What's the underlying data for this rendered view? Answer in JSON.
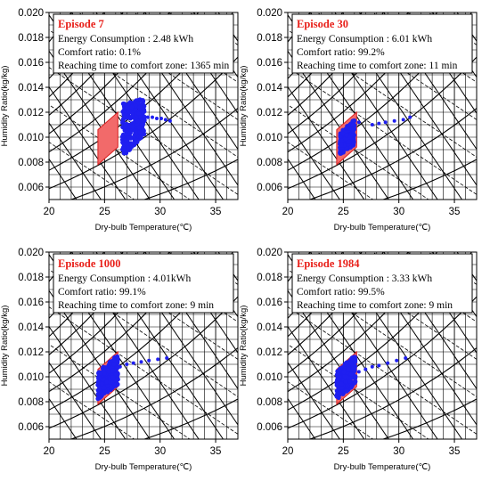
{
  "chart_data": [
    {
      "type": "scatter",
      "title": "Episode 7",
      "info": [
        "Energy Consumption : 2.48 kWh",
        "Comfort ratio: 0.1%",
        "Reaching time to comfort zone: 1365 min"
      ],
      "xlabel": "Dry-bulb Temperature(℃)",
      "ylabel": "Humidity Ratio(kg/kg)",
      "xlim": [
        20,
        37
      ],
      "ylim": [
        0.005,
        0.02
      ],
      "xticks": [
        "20",
        "25",
        "30",
        "35"
      ],
      "yticks": [
        "0.006",
        "0.008",
        "0.010",
        "0.012",
        "0.014",
        "0.016",
        "0.018",
        "0.020"
      ],
      "comfort_zone": [
        [
          24.4,
          0.0078
        ],
        [
          26.2,
          0.0092
        ],
        [
          26.2,
          0.012
        ],
        [
          24.4,
          0.0106
        ]
      ],
      "cluster": [
        [
          26.6,
          0.0084
        ],
        [
          26.6,
          0.0127
        ],
        [
          28.6,
          0.0131
        ],
        [
          28.6,
          0.0102
        ]
      ],
      "trail": [
        [
          28.5,
          0.0117
        ],
        [
          28.9,
          0.0116
        ],
        [
          29.3,
          0.0116
        ],
        [
          29.7,
          0.0115
        ],
        [
          30.1,
          0.0115
        ],
        [
          30.5,
          0.0114
        ],
        [
          30.9,
          0.0113
        ]
      ]
    },
    {
      "type": "scatter",
      "title": "Episode 30",
      "info": [
        "Energy Consumption : 6.01 kWh",
        "Comfort ratio: 99.2%",
        "Reaching time to comfort zone: 11 min"
      ],
      "xlabel": "Dry-bulb Temperature(℃)",
      "ylabel": "Humidity Ratio(kg/kg)",
      "xlim": [
        20,
        37
      ],
      "ylim": [
        0.005,
        0.02
      ],
      "xticks": [
        "20",
        "25",
        "30",
        "35"
      ],
      "yticks": [
        "0.006",
        "0.008",
        "0.010",
        "0.012",
        "0.014",
        "0.016",
        "0.018",
        "0.020"
      ],
      "comfort_zone": [
        [
          24.4,
          0.0078
        ],
        [
          26.2,
          0.0092
        ],
        [
          26.2,
          0.012
        ],
        [
          24.4,
          0.0106
        ]
      ],
      "cluster": [
        [
          24.7,
          0.0086
        ],
        [
          24.7,
          0.0104
        ],
        [
          26.0,
          0.0114
        ],
        [
          26.0,
          0.0094
        ]
      ],
      "trail": [
        [
          26.4,
          0.0112
        ],
        [
          27.6,
          0.011
        ],
        [
          28.2,
          0.0111
        ],
        [
          28.8,
          0.0112
        ],
        [
          29.6,
          0.0113
        ],
        [
          30.4,
          0.0114
        ],
        [
          31.0,
          0.0116
        ]
      ]
    },
    {
      "type": "scatter",
      "title": "Episode 1000",
      "info": [
        "Energy Consumption : 4.01kWh",
        "Comfort ratio: 99.1%",
        "Reaching time to comfort zone: 9 min"
      ],
      "xlabel": "Dry-bulb Temperature(℃)",
      "ylabel": "Humidity Ratio(kg/kg)",
      "xlim": [
        20,
        37
      ],
      "ylim": [
        0.005,
        0.02
      ],
      "xticks": [
        "20",
        "25",
        "30",
        "35"
      ],
      "yticks": [
        "0.006",
        "0.008",
        "0.010",
        "0.012",
        "0.014",
        "0.016",
        "0.018",
        "0.020"
      ],
      "comfort_zone": [
        [
          24.4,
          0.0078
        ],
        [
          26.2,
          0.0092
        ],
        [
          26.2,
          0.012
        ],
        [
          24.4,
          0.0106
        ]
      ],
      "cluster": [
        [
          24.4,
          0.0082
        ],
        [
          24.4,
          0.0104
        ],
        [
          26.2,
          0.0118
        ],
        [
          26.2,
          0.0094
        ]
      ],
      "trail": [
        [
          26.4,
          0.0108
        ],
        [
          27.0,
          0.011
        ],
        [
          27.6,
          0.0111
        ],
        [
          28.3,
          0.0112
        ],
        [
          29.0,
          0.0113
        ],
        [
          29.8,
          0.0114
        ],
        [
          30.6,
          0.0115
        ]
      ]
    },
    {
      "type": "scatter",
      "title": "Episode 1984",
      "info": [
        "Energy Consumption : 3.33 kWh",
        "Comfort ratio: 99.5%",
        "Reaching time to comfort zone: 9 min"
      ],
      "xlabel": "Dry-bulb Temperature(℃)",
      "ylabel": "Humidity Ratio(kg/kg)",
      "xlim": [
        20,
        37
      ],
      "ylim": [
        0.005,
        0.02
      ],
      "xticks": [
        "20",
        "25",
        "30",
        "35"
      ],
      "yticks": [
        "0.006",
        "0.008",
        "0.010",
        "0.012",
        "0.014",
        "0.016",
        "0.018",
        "0.020"
      ],
      "comfort_zone": [
        [
          24.4,
          0.0078
        ],
        [
          26.2,
          0.0092
        ],
        [
          26.2,
          0.012
        ],
        [
          24.4,
          0.0106
        ]
      ],
      "cluster": [
        [
          24.4,
          0.0082
        ],
        [
          24.4,
          0.0104
        ],
        [
          26.1,
          0.0118
        ],
        [
          26.1,
          0.0094
        ]
      ],
      "trail": [
        [
          26.4,
          0.0104
        ],
        [
          27.0,
          0.0106
        ],
        [
          27.6,
          0.0108
        ],
        [
          28.2,
          0.0109
        ],
        [
          29.0,
          0.0111
        ],
        [
          29.8,
          0.0113
        ],
        [
          30.6,
          0.0115
        ]
      ]
    }
  ]
}
